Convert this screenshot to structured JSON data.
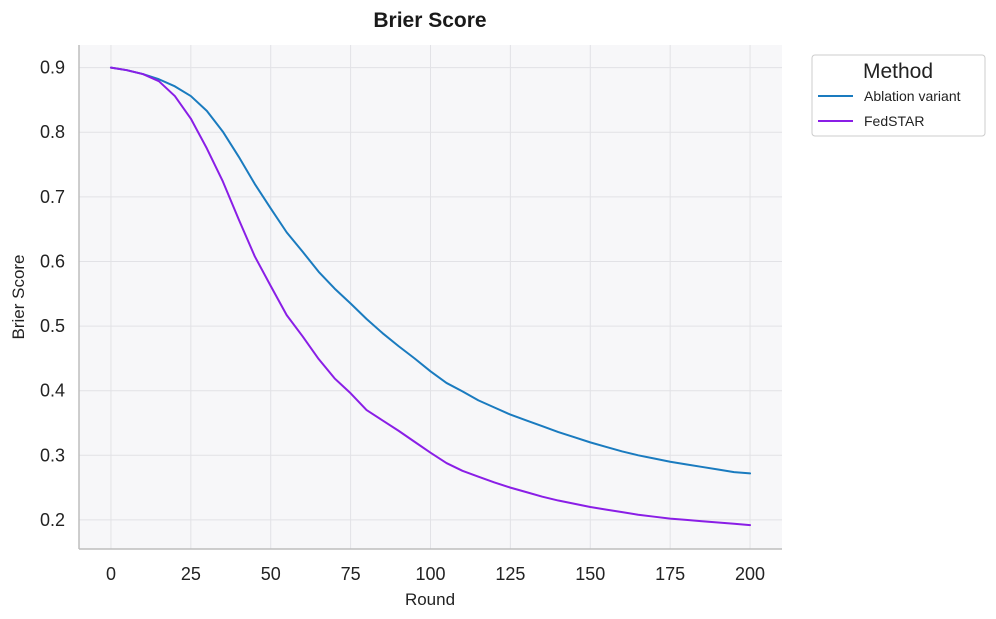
{
  "chart_data": {
    "type": "line",
    "title": "Brier Score",
    "xlabel": "Round",
    "ylabel": "Brier Score",
    "xlim": [
      -10,
      210
    ],
    "ylim": [
      0.155,
      0.935
    ],
    "xticks": [
      0,
      25,
      50,
      75,
      100,
      125,
      150,
      175,
      200
    ],
    "yticks": [
      0.2,
      0.3,
      0.4,
      0.5,
      0.6,
      0.7,
      0.8,
      0.9
    ],
    "grid": true,
    "legend": {
      "title": "Method",
      "placement": "outside-top-right"
    },
    "x": [
      0,
      5,
      10,
      15,
      20,
      25,
      30,
      35,
      40,
      45,
      50,
      55,
      60,
      65,
      70,
      75,
      80,
      85,
      90,
      95,
      100,
      105,
      110,
      115,
      120,
      125,
      130,
      135,
      140,
      145,
      150,
      155,
      160,
      165,
      170,
      175,
      180,
      185,
      190,
      195,
      200
    ],
    "series": [
      {
        "name": "Ablation variant",
        "color": "#1a7bbf",
        "values": [
          0.9,
          0.896,
          0.89,
          0.882,
          0.871,
          0.856,
          0.833,
          0.801,
          0.762,
          0.72,
          0.682,
          0.645,
          0.615,
          0.584,
          0.558,
          0.535,
          0.511,
          0.489,
          0.469,
          0.45,
          0.43,
          0.412,
          0.399,
          0.385,
          0.374,
          0.363,
          0.354,
          0.345,
          0.336,
          0.328,
          0.32,
          0.313,
          0.306,
          0.3,
          0.295,
          0.29,
          0.286,
          0.282,
          0.278,
          0.274,
          0.272
        ]
      },
      {
        "name": "FedSTAR",
        "color": "#8a1ee6",
        "values": [
          0.9,
          0.896,
          0.89,
          0.879,
          0.856,
          0.821,
          0.775,
          0.724,
          0.665,
          0.608,
          0.562,
          0.517,
          0.484,
          0.449,
          0.419,
          0.396,
          0.37,
          0.354,
          0.338,
          0.321,
          0.304,
          0.288,
          0.276,
          0.267,
          0.258,
          0.25,
          0.243,
          0.236,
          0.23,
          0.225,
          0.22,
          0.216,
          0.212,
          0.208,
          0.205,
          0.202,
          0.2,
          0.198,
          0.196,
          0.194,
          0.192
        ]
      }
    ]
  }
}
